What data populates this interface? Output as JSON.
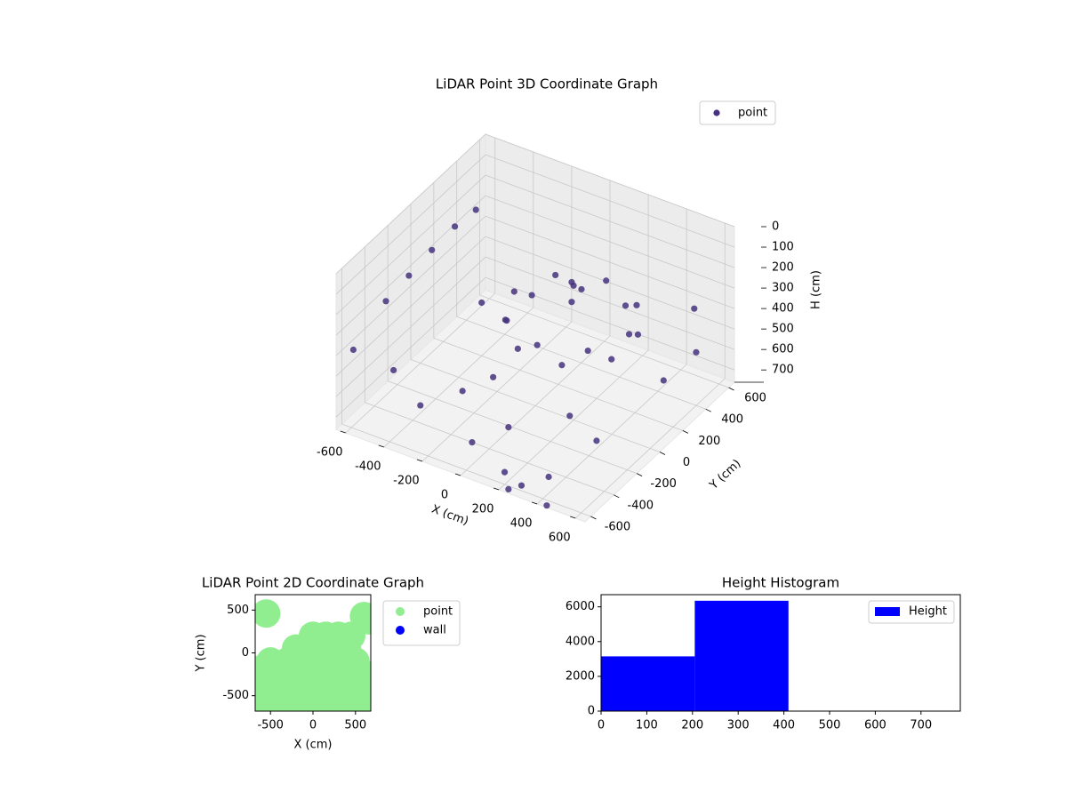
{
  "chart_data": [
    {
      "type": "scatter3d",
      "title": "LiDAR Point 3D Coordinate Graph",
      "xlabel": "X (cm)",
      "ylabel": "Y (cm)",
      "zlabel": "H (cm)",
      "xlim": [
        -650,
        650
      ],
      "ylim": [
        -650,
        650
      ],
      "zlim": [
        0,
        760
      ],
      "z_inverted": true,
      "xticks": [
        -600,
        -400,
        -200,
        0,
        200,
        400,
        600
      ],
      "yticks": [
        -600,
        -400,
        -200,
        0,
        200,
        400,
        600
      ],
      "zticks": [
        0,
        100,
        200,
        300,
        400,
        500,
        600,
        700
      ],
      "legend": "upper right",
      "series": [
        {
          "name": "point",
          "color": "#46327e",
          "x": [
            400,
            377,
            312,
            215,
            100,
            -15,
            -112,
            -177,
            -200,
            -177,
            -112,
            -15,
            100,
            215,
            312,
            377,
            -600,
            -600,
            -600,
            -600,
            -580,
            100,
            80,
            130,
            -500,
            -300,
            0,
            200,
            300,
            400,
            -200,
            100,
            500,
            550,
            600,
            500,
            -400,
            -100,
            300,
            -650,
            250,
            450
          ],
          "y": [
            150,
            265,
            362,
            427,
            450,
            427,
            362,
            265,
            150,
            35,
            -62,
            -127,
            -150,
            -127,
            -62,
            35,
            -300,
            -100,
            100,
            300,
            450,
            150,
            200,
            100,
            -400,
            -500,
            -550,
            -600,
            -620,
            -550,
            -300,
            -400,
            -300,
            200,
            400,
            550,
            200,
            -200,
            -200,
            -500,
            -650,
            -650
          ],
          "z": [
            350,
            420,
            350,
            420,
            350,
            420,
            350,
            420,
            350,
            420,
            350,
            420,
            350,
            420,
            350,
            420,
            300,
            280,
            260,
            250,
            240,
            200,
            250,
            260,
            550,
            600,
            650,
            700,
            720,
            680,
            600,
            620,
            600,
            550,
            500,
            400,
            500,
            550,
            600,
            450,
            740,
            750
          ]
        }
      ]
    },
    {
      "type": "scatter",
      "title": "LiDAR Point 2D Coordinate Graph",
      "xlabel": "X (cm)",
      "ylabel": "Y (cm)",
      "xlim": [
        -680,
        680
      ],
      "ylim": [
        -680,
        680
      ],
      "xticks": [
        -500,
        0,
        500
      ],
      "yticks": [
        -500,
        0,
        500
      ],
      "legend": "outside right",
      "series": [
        {
          "name": "point",
          "color": "#90ee90",
          "x": [
            -600,
            -400,
            -200,
            0,
            200,
            400,
            600,
            -650,
            -500,
            -300,
            -100,
            100,
            300,
            500,
            650,
            -600,
            -400,
            -200,
            0,
            200,
            400,
            600,
            -500,
            -300,
            -100,
            100,
            300,
            500,
            -200,
            0,
            200,
            400,
            0,
            150,
            300,
            450,
            -550,
            600,
            650,
            -650
          ],
          "y": [
            -550,
            -550,
            -550,
            -550,
            -550,
            -550,
            -550,
            -400,
            -400,
            -400,
            -400,
            -400,
            -400,
            -400,
            -400,
            -250,
            -250,
            -250,
            -250,
            -250,
            -250,
            -250,
            -100,
            -100,
            -100,
            -100,
            -100,
            -100,
            50,
            50,
            50,
            50,
            200,
            200,
            200,
            200,
            460,
            430,
            380,
            -200
          ]
        },
        {
          "name": "wall",
          "color": "#0000ff",
          "x": [],
          "y": []
        }
      ]
    },
    {
      "type": "histogram",
      "title": "Height Histogram",
      "bins": [
        0,
        205,
        410,
        600,
        786
      ],
      "counts": [
        3150,
        6350,
        20,
        15
      ],
      "series_name": "Height",
      "color": "#0000ff",
      "xlim": [
        0,
        786
      ],
      "ylim": [
        0,
        6700
      ],
      "xticks": [
        0,
        100,
        200,
        300,
        400,
        500,
        600,
        700
      ],
      "yticks": [
        0,
        2000,
        4000,
        6000
      ],
      "legend": "upper right"
    }
  ]
}
